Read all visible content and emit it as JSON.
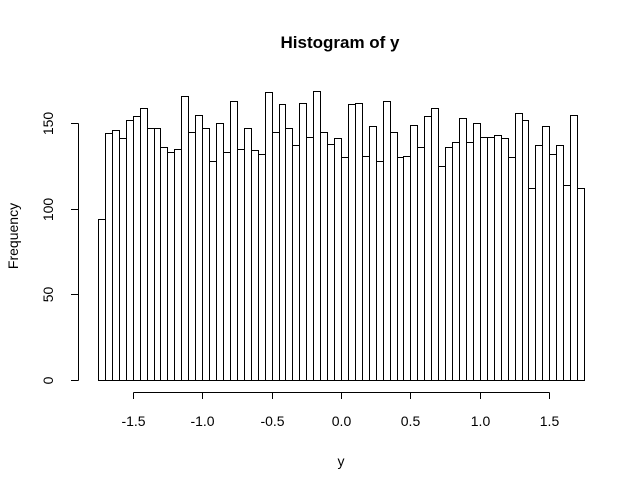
{
  "chart_data": {
    "type": "bar",
    "title": "Histogram of y",
    "xlabel": "y",
    "ylabel": "Frequency",
    "bin_start": -1.75,
    "bin_width": 0.05,
    "values": [
      94,
      144,
      146,
      141,
      152,
      154,
      159,
      147,
      147,
      136,
      133,
      135,
      166,
      145,
      155,
      147,
      128,
      150,
      133,
      163,
      135,
      147,
      134,
      132,
      168,
      145,
      161,
      147,
      137,
      162,
      142,
      169,
      145,
      138,
      141,
      130,
      161,
      162,
      131,
      148,
      128,
      163,
      145,
      130,
      131,
      149,
      136,
      154,
      159,
      125,
      136,
      139,
      153,
      139,
      150,
      142,
      142,
      143,
      141,
      130,
      156,
      152,
      112,
      137,
      148,
      132,
      137,
      114,
      155,
      112
    ],
    "xlim": [
      -1.75,
      1.75
    ],
    "ylim": [
      0,
      175
    ],
    "x_ticks": [
      -1.5,
      -1.0,
      -0.5,
      0.0,
      0.5,
      1.0,
      1.5
    ],
    "x_tick_labels": [
      "-1.5",
      "-1.0",
      "-0.5",
      "0.0",
      "0.5",
      "1.0",
      "1.5"
    ],
    "y_ticks": [
      0,
      50,
      100,
      150
    ],
    "y_tick_labels": [
      "0",
      "50",
      "100",
      "150"
    ],
    "grid": false,
    "bar_fill": "#ffffff",
    "bar_stroke": "#000000"
  }
}
